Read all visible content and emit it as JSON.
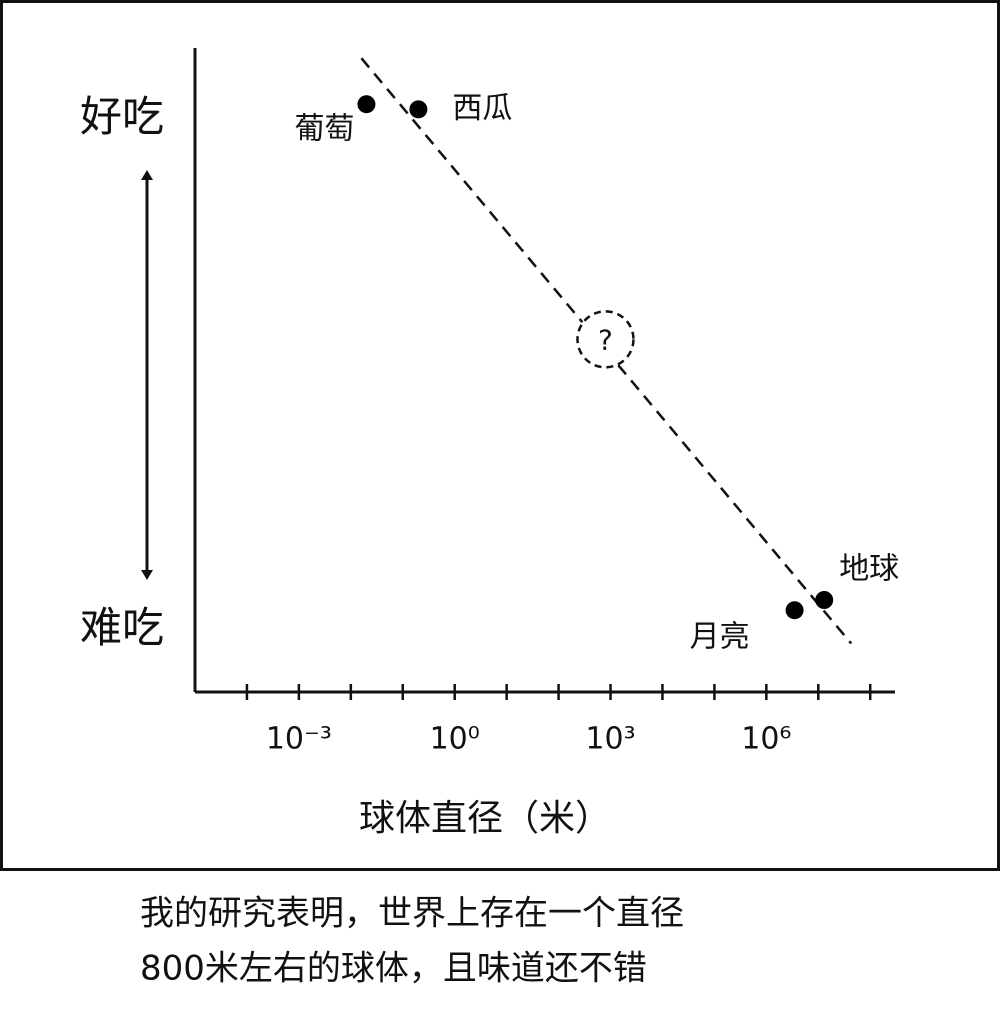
{
  "chart_data": {
    "type": "scatter",
    "log_x": true,
    "x_title": "球体直径（米）",
    "xlim": [
      1e-05,
      300000000
    ],
    "xticks": [
      {
        "value": 0.001,
        "label": "10⁻³"
      },
      {
        "value": 1,
        "label": "10⁰"
      },
      {
        "value": 1000,
        "label": "10³"
      },
      {
        "value": 1000000,
        "label": "10⁶"
      }
    ],
    "xminorticks": [
      0.0001,
      0.01,
      0.1,
      10,
      100,
      10000,
      100000,
      10000000,
      100000000
    ],
    "ylim": [
      -1.2,
      11.4
    ],
    "yticks": [
      {
        "value": 10,
        "label": "好吃"
      },
      {
        "value": 0,
        "label": "难吃"
      }
    ],
    "x": [
      0.02,
      0.2,
      3500000,
      13000000
    ],
    "values": [
      10.3,
      10.2,
      0.4,
      0.6
    ],
    "labels": [
      "葡萄",
      "西瓜",
      "月亮",
      "地球"
    ],
    "color": "#000000",
    "trend": {
      "x": [
        0.016,
        43000000
      ],
      "y": [
        11.2,
        -0.25
      ]
    },
    "annotation": {
      "text": "?",
      "x": 800,
      "y": 5.7
    },
    "caption": [
      "我的研究表明，世界上存在一个直径",
      "800米左右的球体，且味道还不错"
    ]
  }
}
